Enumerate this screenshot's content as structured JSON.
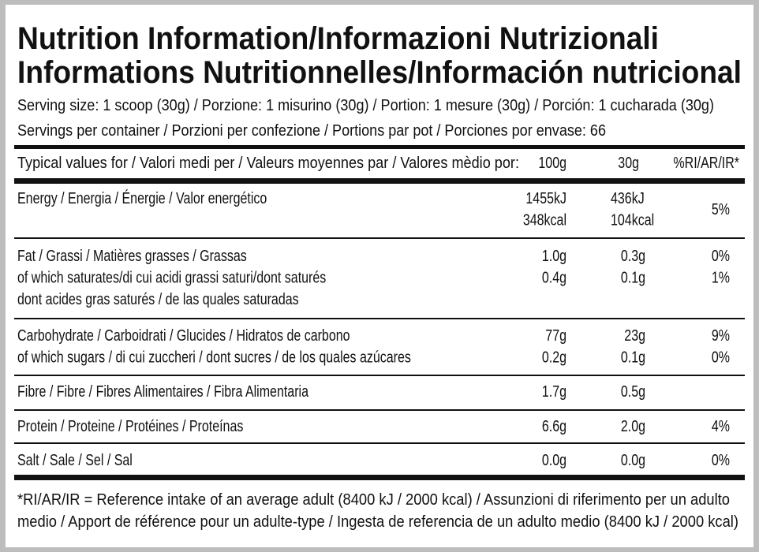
{
  "header": {
    "title_lines": [
      "Nutrition Information/Informazioni Nutrizionali",
      "Informations Nutritionnelles/Información nutricional"
    ],
    "serving_size": "Serving size: 1 scoop (30g) / Porzione: 1 misurino (30g) / Portion: 1 mesure (30g) / Porción: 1 cucharada (30g)",
    "servings_per_container": "Servings per container / Porzioni per confezione / Portions par pot / Porciones por envase: 66"
  },
  "table": {
    "columns": [
      "Typical values for / Valori medi per / Valeurs moyennes par / Valores mèdio por:",
      "100g",
      "30g",
      "%RI/AR/IR*"
    ],
    "groups": [
      {
        "labels": [
          "Energy / Energia / Énergie / Valor energético"
        ],
        "per_100g": [
          "1455kJ",
          "348kcal"
        ],
        "per_30g": [
          "436kJ",
          "104kcal"
        ],
        "ri": [
          "5%"
        ]
      },
      {
        "labels": [
          "Fat / Grassi / Matières grasses / Grassas",
          "of which saturates/di cui acidi grassi saturi/dont saturés",
          "dont acides gras saturés / de las quales saturadas"
        ],
        "per_100g": [
          "1.0g",
          "0.4g"
        ],
        "per_30g": [
          "0.3g",
          "0.1g"
        ],
        "ri": [
          "0%",
          "1%"
        ]
      },
      {
        "labels": [
          "Carbohydrate / Carboidrati / Glucides / Hidratos de carbono",
          "of which sugars / di cui zuccheri / dont sucres / de los quales azúcares"
        ],
        "per_100g": [
          "77g",
          "0.2g"
        ],
        "per_30g": [
          "23g",
          "0.1g"
        ],
        "ri": [
          "9%",
          "0%"
        ]
      },
      {
        "labels": [
          "Fibre / Fibre / Fibres Alimentaires / Fibra Alimentaria"
        ],
        "per_100g": [
          "1.7g"
        ],
        "per_30g": [
          "0.5g"
        ]
      },
      {
        "labels": [
          "Protein / Proteine / Protéines / Proteínas"
        ],
        "per_100g": [
          "6.6g"
        ],
        "per_30g": [
          "2.0g"
        ],
        "ri": [
          "4%"
        ]
      },
      {
        "labels": [
          "Salt / Sale / Sel / Sal"
        ],
        "per_100g": [
          "0.0g"
        ],
        "per_30g": [
          "0.0g"
        ],
        "ri": [
          "0%"
        ]
      }
    ]
  },
  "footnote_lines": [
    "*RI/AR/IR = Reference intake of an average adult (8400 kJ / 2000 kcal)  / Assunzioni di riferimento per un adulto",
    "medio / Apport de référence pour un adulte-type / Ingesta de referencia de un adulto medio (8400 kJ / 2000 kcal)"
  ]
}
